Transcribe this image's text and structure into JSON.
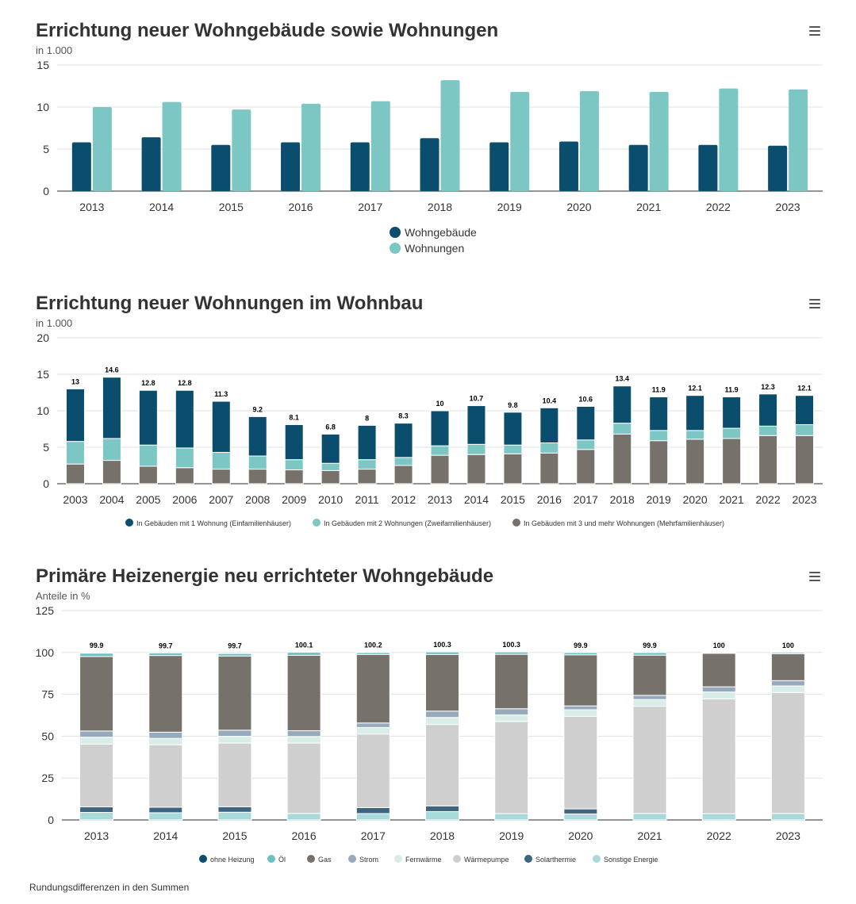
{
  "footnote": "Rundungsdifferenzen in den Summen",
  "colors": {
    "dark_teal": "#0b4d6d",
    "light_teal": "#7cc7c4",
    "gray": "#77716c",
    "grid": "#e1e1e1",
    "axis": "#555555"
  },
  "icons": {
    "menu": "hamburger-menu-icon",
    "legend_marker": "circle"
  },
  "chart_data": [
    {
      "type": "bar",
      "title": "Errichtung neuer Wohngebäude sowie Wohnungen",
      "subtitle": "in 1.000",
      "categories": [
        "2013",
        "2014",
        "2015",
        "2016",
        "2017",
        "2018",
        "2019",
        "2020",
        "2021",
        "2022",
        "2023"
      ],
      "yticks": [
        "0",
        "5",
        "10",
        "15"
      ],
      "ylim": [
        0,
        15
      ],
      "grid": true,
      "legend_position": "bottom-center",
      "series": [
        {
          "name": "Wohngebäude",
          "color": "#0b4d6d",
          "values": [
            5.8,
            6.4,
            5.5,
            5.8,
            5.8,
            6.3,
            5.8,
            5.9,
            5.5,
            5.5,
            5.4
          ]
        },
        {
          "name": "Wohnungen",
          "color": "#7cc7c4",
          "values": [
            10.0,
            10.6,
            9.7,
            10.4,
            10.7,
            13.2,
            11.8,
            11.9,
            11.8,
            12.2,
            12.1
          ]
        }
      ]
    },
    {
      "type": "bar",
      "stacked": true,
      "title": "Errichtung neuer Wohnungen im Wohnbau",
      "subtitle": "in 1.000",
      "categories": [
        "2003",
        "2004",
        "2005",
        "2006",
        "2007",
        "2008",
        "2009",
        "2010",
        "2011",
        "2012",
        "2013",
        "2014",
        "2015",
        "2016",
        "2017",
        "2018",
        "2019",
        "2020",
        "2021",
        "2022",
        "2023"
      ],
      "yticks": [
        "0",
        "5",
        "10",
        "15",
        "20"
      ],
      "ylim": [
        0,
        20
      ],
      "grid": true,
      "legend_position": "bottom-center",
      "totals": [
        "13",
        "14.6",
        "12.8",
        "12.8",
        "11.3",
        "9.2",
        "8.1",
        "6.8",
        "8",
        "8.3",
        "10",
        "10.7",
        "9.8",
        "10.4",
        "10.6",
        "13.4",
        "11.9",
        "12.1",
        "11.9",
        "12.3",
        "12.1"
      ],
      "series": [
        {
          "name": "In Gebäuden mit 3 und mehr Wohnungen (Mehrfamilienhäuser)",
          "color": "#77716c",
          "values": [
            2.7,
            3.2,
            2.4,
            2.2,
            2.0,
            2.0,
            1.9,
            1.8,
            2.0,
            2.5,
            3.9,
            4.0,
            4.1,
            4.2,
            4.7,
            6.8,
            5.9,
            6.1,
            6.2,
            6.6,
            6.6
          ]
        },
        {
          "name": "In Gebäuden mit 2 Wohnungen (Zweifamilienhäuser)",
          "color": "#7cc7c4",
          "values": [
            3.1,
            3.0,
            2.9,
            2.7,
            2.3,
            1.8,
            1.4,
            1.0,
            1.3,
            1.1,
            1.3,
            1.4,
            1.2,
            1.4,
            1.3,
            1.5,
            1.4,
            1.2,
            1.4,
            1.3,
            1.5
          ]
        },
        {
          "name": "In Gebäuden mit 1 Wohnung (Einfamilienhäuser)",
          "color": "#0b4d6d",
          "values": [
            7.2,
            8.4,
            7.5,
            7.9,
            7.0,
            5.4,
            4.8,
            4.0,
            4.7,
            4.7,
            4.8,
            5.3,
            4.5,
            4.8,
            4.6,
            5.1,
            4.6,
            4.8,
            4.3,
            4.4,
            4.0
          ]
        }
      ],
      "legend_order": [
        "In Gebäuden mit 1 Wohnung (Einfamilienhäuser)",
        "In Gebäuden mit 2 Wohnungen (Zweifamilienhäuser)",
        "In Gebäuden mit 3 und mehr Wohnungen (Mehrfamilienhäuser)"
      ]
    },
    {
      "type": "bar",
      "stacked": true,
      "title": "Primäre Heizenergie neu errichteter Wohngebäude",
      "subtitle": "Anteile in %",
      "categories": [
        "2013",
        "2014",
        "2015",
        "2016",
        "2017",
        "2018",
        "2019",
        "2020",
        "2021",
        "2022",
        "2023"
      ],
      "yticks": [
        "0",
        "25",
        "50",
        "75",
        "100",
        "125"
      ],
      "ylim": [
        0,
        125
      ],
      "grid": true,
      "legend_position": "bottom-center",
      "totals": [
        "99.9",
        "99.7",
        "99.7",
        "100.1",
        "100.2",
        "100.3",
        "100.3",
        "99.9",
        "99.9",
        "100",
        "100"
      ],
      "series": [
        {
          "name": "Sonstige Energie",
          "color": "#a8dadc",
          "values": [
            4.5,
            4.3,
            4.6,
            3.9,
            3.8,
            5.0,
            3.8,
            3.6,
            3.9,
            3.8,
            3.9
          ]
        },
        {
          "name": "Solarthermie",
          "color": "#3d6580",
          "values": [
            3.3,
            3.3,
            3.3,
            0.0,
            3.6,
            3.4,
            0.0,
            3.0,
            0.0,
            0.0,
            0.0
          ]
        },
        {
          "name": "Wärmepumpe",
          "color": "#cfcfcf",
          "values": [
            37.5,
            37.3,
            38.0,
            42.0,
            43.9,
            48.6,
            55.0,
            55.3,
            64.0,
            68.5,
            72.2
          ]
        },
        {
          "name": "Fernwärme",
          "color": "#d8ece8",
          "values": [
            4.1,
            3.8,
            4.0,
            3.9,
            3.9,
            4.2,
            3.9,
            3.9,
            4.0,
            4.1,
            3.9
          ]
        },
        {
          "name": "Strom",
          "color": "#97a9bc",
          "values": [
            3.7,
            3.7,
            3.7,
            3.5,
            2.7,
            3.8,
            3.7,
            2.3,
            2.5,
            3.1,
            3.2
          ]
        },
        {
          "name": "Gas",
          "color": "#77716c",
          "values": [
            44.5,
            45.8,
            44.3,
            45.0,
            40.9,
            33.8,
            32.5,
            30.5,
            24.0,
            20.0,
            16.0
          ]
        },
        {
          "name": "Öl",
          "color": "#6cc2c1",
          "values": [
            2.0,
            1.5,
            1.5,
            1.8,
            1.2,
            1.5,
            1.4,
            1.3,
            1.5,
            0.5,
            0.8
          ]
        },
        {
          "name": "ohne Heizung",
          "color": "#0b4d6d",
          "values": [
            0.3,
            0.0,
            0.3,
            0.0,
            0.2,
            0.0,
            0.0,
            0.0,
            0.0,
            0.0,
            0.0
          ]
        }
      ],
      "legend_order": [
        "ohne Heizung",
        "Öl",
        "Gas",
        "Strom",
        "Fernwärme",
        "Wärmepumpe",
        "Solarthermie",
        "Sonstige Energie"
      ]
    }
  ]
}
